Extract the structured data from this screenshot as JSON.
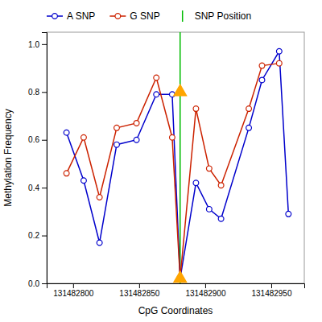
{
  "chart_data": {
    "type": "line",
    "xlabel": "CpG Coordinates",
    "ylabel": "Methylation Frequency",
    "series": [
      {
        "name": "A SNP",
        "color": "#0000CC",
        "marker": "circle",
        "x": [
          131482795,
          131482808,
          131482820,
          131482833,
          131482848,
          131482863,
          131482875,
          131482881,
          131482893,
          131482903,
          131482912,
          131482933,
          131482943,
          131482956,
          131482963
        ],
        "values": [
          0.63,
          0.43,
          0.17,
          0.58,
          0.6,
          0.79,
          0.79,
          0.02,
          0.42,
          0.31,
          0.27,
          0.65,
          0.85,
          0.97,
          0.29
        ]
      },
      {
        "name": "G SNP",
        "color": "#CC2200",
        "marker": "circle",
        "x": [
          131482795,
          131482808,
          131482820,
          131482833,
          131482848,
          131482863,
          131482875,
          131482881,
          131482893,
          131482903,
          131482912,
          131482933,
          131482943,
          131482956
        ],
        "values": [
          0.46,
          0.61,
          0.36,
          0.65,
          0.67,
          0.86,
          0.61,
          0.02,
          0.73,
          0.48,
          0.41,
          0.73,
          0.91,
          0.92
        ]
      },
      {
        "name": "SNP Position",
        "type": "vline",
        "color": "#00BB00",
        "x": [
          131482881
        ]
      },
      {
        "type": "scatter",
        "marker": "triangle",
        "color": "#FFA500",
        "x": [
          131482881,
          131482881
        ],
        "values": [
          0.8,
          0.02
        ]
      }
    ],
    "xlim": [
      131482780,
      131482975
    ],
    "ylim": [
      0.0,
      1.05
    ],
    "xticks": [
      131482800,
      131482850,
      131482900,
      131482950
    ],
    "yticks": [
      {
        "value": 0.0,
        "label": "0.0"
      },
      0.2,
      0.4,
      0.6,
      0.8,
      {
        "value": 1.0,
        "label": "1.0"
      }
    ],
    "grid": false,
    "legend": "top"
  }
}
